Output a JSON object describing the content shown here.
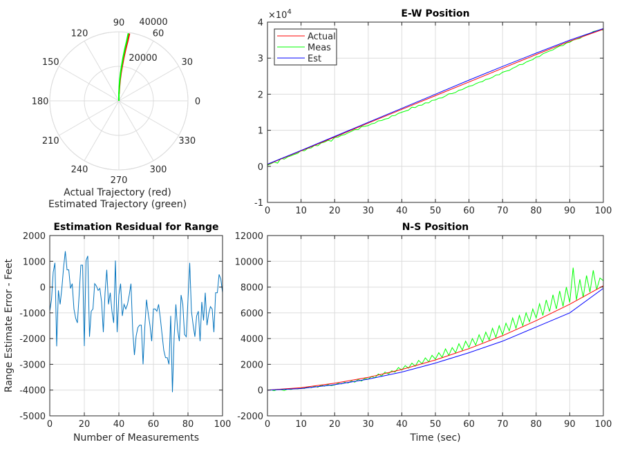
{
  "chart_data": [
    {
      "id": "polar",
      "type": "line",
      "subtype": "polar",
      "xlabel_lines": [
        "Actual Trajectory (red)",
        "Estimated Trajectory (green)"
      ],
      "rlim": [
        0,
        40000
      ],
      "r_ticks": [
        "20000",
        "40000"
      ],
      "r_tick_values": [
        20000,
        40000
      ],
      "theta_ticks": [
        "0",
        "30",
        "60",
        "90",
        "120",
        "150",
        "180",
        "210",
        "240",
        "270",
        "300",
        "330"
      ],
      "grid": true,
      "series": [
        {
          "name": "Actual",
          "color": "#ff0000",
          "r": [
            4000,
            8000,
            12000,
            16000,
            20000,
            25000,
            30000,
            35000,
            39500
          ],
          "theta_deg": [
            89,
            87.5,
            86.5,
            85.5,
            84.5,
            83.5,
            82.5,
            81.5,
            81
          ]
        },
        {
          "name": "Estimated",
          "color": "#00ff00",
          "r": [
            0,
            4000,
            8000,
            12000,
            16000,
            20000,
            25000,
            30000,
            35000,
            39500
          ],
          "theta_deg": [
            90,
            89.5,
            88.5,
            87.5,
            86.5,
            85.5,
            84.5,
            83.5,
            82.5,
            82
          ]
        }
      ]
    },
    {
      "id": "ew",
      "type": "line",
      "title": "E-W Position",
      "xlabel": "",
      "ylabel": "",
      "xlim": [
        0,
        100
      ],
      "ylim": [
        -10000,
        40000
      ],
      "x_ticks": [
        "0",
        "10",
        "20",
        "30",
        "40",
        "50",
        "60",
        "70",
        "80",
        "90",
        "100"
      ],
      "x_tick_values": [
        0,
        10,
        20,
        30,
        40,
        50,
        60,
        70,
        80,
        90,
        100
      ],
      "y_ticks": [
        "-1",
        "0",
        "1",
        "2",
        "3",
        "4"
      ],
      "y_tick_values": [
        -10000,
        0,
        10000,
        20000,
        30000,
        40000
      ],
      "y_exponent": "×10",
      "y_exponent_power": "4",
      "grid": true,
      "legend": {
        "placement": "top-left",
        "entries": [
          "Actual",
          "Meas",
          "Est"
        ]
      },
      "series": [
        {
          "name": "Meas",
          "color": "#00ff00",
          "x_step": 1,
          "values": [
            300,
            700,
            1200,
            900,
            2200,
            2000,
            2600,
            2900,
            3300,
            3600,
            4400,
            4300,
            5000,
            5100,
            5800,
            5700,
            6500,
            6700,
            7200,
            7000,
            8000,
            8100,
            8600,
            8800,
            9300,
            9700,
            10200,
            10200,
            11000,
            11100,
            11300,
            11800,
            12000,
            12600,
            12700,
            13100,
            13300,
            14000,
            14100,
            14700,
            15000,
            15300,
            15600,
            16400,
            16300,
            16900,
            17000,
            17600,
            17600,
            18300,
            18400,
            18900,
            19000,
            19500,
            20100,
            20200,
            20500,
            21100,
            21300,
            21800,
            22200,
            22400,
            22900,
            23300,
            23500,
            24100,
            24300,
            24700,
            25300,
            25400,
            26100,
            26400,
            26600,
            27200,
            27600,
            28200,
            28300,
            28900,
            29300,
            29600,
            30300,
            30500,
            31200,
            31600,
            32000,
            32300,
            32900,
            33400,
            33500,
            34200,
            34400,
            35000,
            35300,
            35500,
            36100,
            36600,
            36800,
            37400,
            37600,
            37900,
            37800
          ]
        },
        {
          "name": "Actual",
          "color": "#ff0000",
          "x_step": 10,
          "values": [
            500,
            4300,
            8100,
            12000,
            15800,
            19600,
            23400,
            27200,
            31000,
            34700,
            38000
          ]
        },
        {
          "name": "Est",
          "color": "#0000ff",
          "x_step": 10,
          "values": [
            600,
            4400,
            8300,
            12200,
            16100,
            20000,
            23900,
            27700,
            31400,
            35000,
            38200
          ]
        }
      ]
    },
    {
      "id": "residual",
      "type": "line",
      "title": "Estimation Residual for Range",
      "xlabel": "Number of Measurements",
      "ylabel": "Range Estimate Error - Feet",
      "xlim": [
        0,
        100
      ],
      "ylim": [
        -5000,
        2000
      ],
      "x_ticks": [
        "0",
        "20",
        "40",
        "60",
        "80",
        "100"
      ],
      "x_tick_values": [
        0,
        20,
        40,
        60,
        80,
        100
      ],
      "y_ticks": [
        "-5000",
        "-4000",
        "-3000",
        "-2000",
        "-1000",
        "0",
        "1000",
        "2000"
      ],
      "y_tick_values": [
        -5000,
        -4000,
        -3000,
        -2000,
        -1000,
        0,
        1000,
        2000
      ],
      "grid": true,
      "series": [
        {
          "name": "Residual",
          "color": "#0072bd",
          "x_step": 1,
          "values": [
            -940,
            -500,
            580,
            940,
            -2300,
            -130,
            -670,
            -50,
            760,
            1390,
            670,
            670,
            -50,
            130,
            -850,
            -1210,
            -1390,
            -310,
            850,
            850,
            -2290,
            1030,
            1210,
            -1930,
            -940,
            -850,
            130,
            40,
            -130,
            -50,
            -580,
            -1750,
            -220,
            670,
            -670,
            -220,
            -940,
            -1390,
            1030,
            -1750,
            -310,
            130,
            -1120,
            -670,
            -850,
            -670,
            -310,
            130,
            -1660,
            -2640,
            -1900,
            -1570,
            -1480,
            -1480,
            -3000,
            -1570,
            -490,
            -1030,
            -1480,
            -2100,
            -850,
            -850,
            -940,
            -670,
            -1210,
            -1840,
            -2460,
            -2740,
            -2740,
            -3000,
            -1120,
            -4080,
            -1930,
            -670,
            -1660,
            -2100,
            -310,
            -670,
            -1840,
            -1930,
            -490,
            940,
            -940,
            -1480,
            -1930,
            -1120,
            -940,
            -2100,
            -580,
            -1300,
            -220,
            -1480,
            -1030,
            -760,
            -850,
            -1750,
            -220,
            -220,
            490,
            310,
            -220
          ]
        }
      ]
    },
    {
      "id": "ns",
      "type": "line",
      "title": "N-S Position",
      "xlabel": "Time (sec)",
      "ylabel": "",
      "xlim": [
        0,
        100
      ],
      "ylim": [
        -2000,
        12000
      ],
      "x_ticks": [
        "0",
        "10",
        "20",
        "30",
        "40",
        "50",
        "60",
        "70",
        "80",
        "90",
        "100"
      ],
      "x_tick_values": [
        0,
        10,
        20,
        30,
        40,
        50,
        60,
        70,
        80,
        90,
        100
      ],
      "y_ticks": [
        "-2000",
        "0",
        "2000",
        "4000",
        "6000",
        "8000",
        "10000",
        "12000"
      ],
      "y_tick_values": [
        -2000,
        0,
        2000,
        4000,
        6000,
        8000,
        10000,
        12000
      ],
      "grid": true,
      "series": [
        {
          "name": "Meas",
          "color": "#00ff00",
          "x_step": 1,
          "values": [
            0,
            20,
            -50,
            60,
            40,
            -30,
            80,
            50,
            120,
            90,
            150,
            120,
            250,
            180,
            300,
            220,
            380,
            300,
            420,
            350,
            400,
            520,
            480,
            600,
            550,
            700,
            620,
            820,
            700,
            900,
            850,
            1050,
            950,
            1250,
            1100,
            1400,
            1250,
            1500,
            1400,
            1750,
            1550,
            1900,
            1700,
            2100,
            1850,
            2300,
            2050,
            2500,
            2200,
            2700,
            2400,
            2900,
            2550,
            3200,
            2700,
            3300,
            2900,
            3600,
            3100,
            3800,
            3300,
            4000,
            3500,
            4300,
            3700,
            4500,
            3900,
            4800,
            4100,
            5000,
            4300,
            5200,
            4600,
            5600,
            4800,
            5800,
            5000,
            6000,
            5300,
            6300,
            5600,
            6700,
            5800,
            7000,
            6100,
            7400,
            6300,
            7700,
            6500,
            8000,
            6800,
            9500,
            7000,
            8600,
            7200,
            8900,
            7600,
            9300,
            7800,
            8700,
            8500
          ]
        },
        {
          "name": "Actual",
          "color": "#ff0000",
          "x_step": 10,
          "values": [
            0,
            190,
            530,
            990,
            1600,
            2340,
            3220,
            4230,
            5390,
            6670,
            8100
          ]
        },
        {
          "name": "Est",
          "color": "#0000ff",
          "x_step": 10,
          "values": [
            0,
            120,
            420,
            850,
            1400,
            2100,
            2900,
            3800,
            4900,
            6000,
            7900
          ]
        }
      ]
    }
  ]
}
